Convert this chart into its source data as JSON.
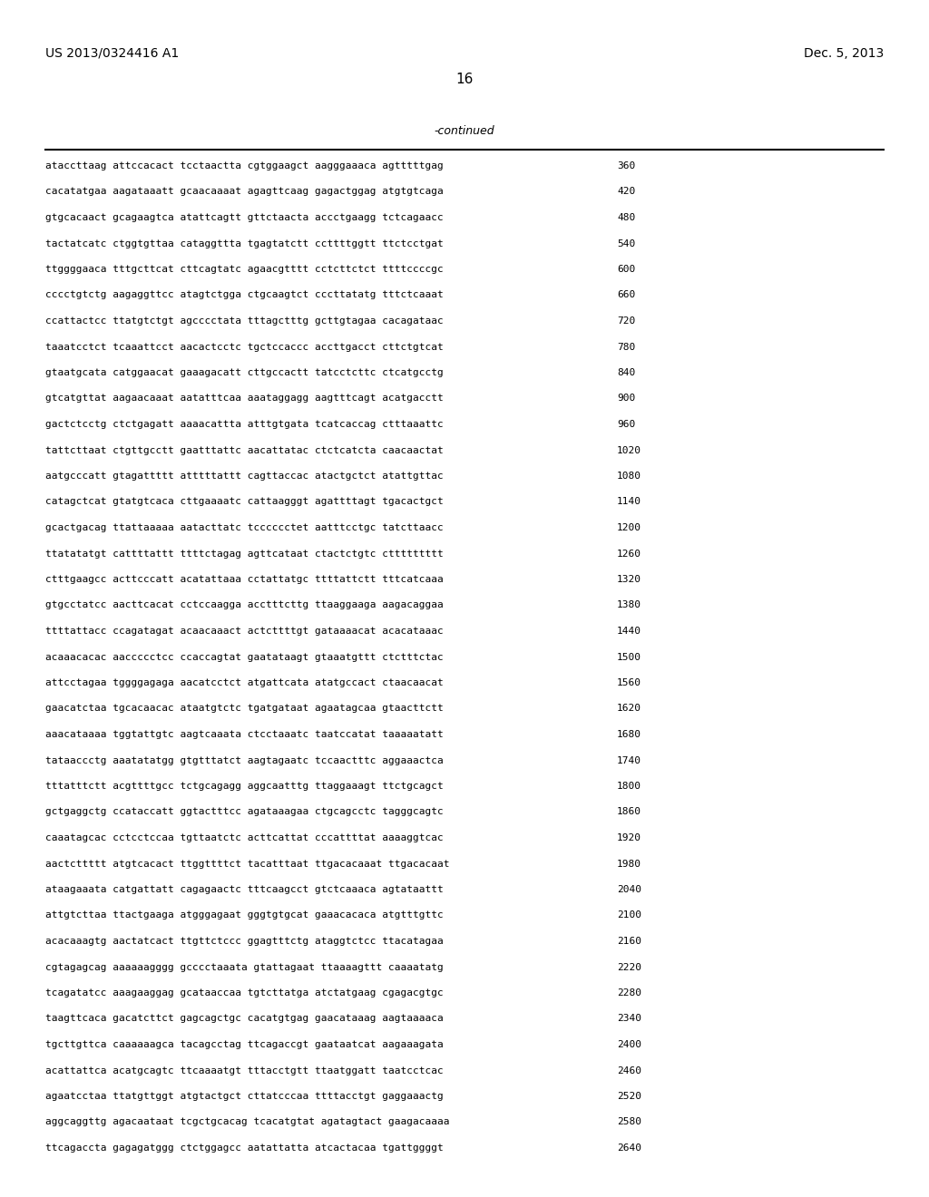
{
  "header_left": "US 2013/0324416 A1",
  "header_right": "Dec. 5, 2013",
  "page_number": "16",
  "continued_label": "-continued",
  "background_color": "#ffffff",
  "text_color": "#000000",
  "sequences": [
    [
      "ataccttaag attccacact tcctaactta cgtggaagct aagggaaaca agtttttgag",
      "360"
    ],
    [
      "cacatatgaa aagataaatt gcaacaaaat agagttcaag gagactggag atgtgtcaga",
      "420"
    ],
    [
      "gtgcacaact gcagaagtca atattcagtt gttctaacta accctgaagg tctcagaacc",
      "480"
    ],
    [
      "tactatcatc ctggtgttaa cataggttta tgagtatctt ccttttggtt ttctcctgat",
      "540"
    ],
    [
      "ttggggaaca tttgcttcat cttcagtatc agaacgtttt cctcttctct ttttccccgc",
      "600"
    ],
    [
      "cccctgtctg aagaggttcc atagtctgga ctgcaagtct cccttatatg tttctcaaat",
      "660"
    ],
    [
      "ccattactcc ttatgtctgt agcccctata tttagctttg gcttgtagaa cacagataac",
      "720"
    ],
    [
      "taaatcctct tcaaattcct aacactcctc tgctccaccc accttgacct cttctgtcat",
      "780"
    ],
    [
      "gtaatgcata catggaacat gaaagacatt cttgccactt tatcctcttc ctcatgcctg",
      "840"
    ],
    [
      "gtcatgttat aagaacaaat aatatttcaa aaataggagg aagtttcagt acatgacctt",
      "900"
    ],
    [
      "gactctcctg ctctgagatt aaaacattta atttgtgata tcatcaccag ctttaaattc",
      "960"
    ],
    [
      "tattcttaat ctgttgcctt gaatttattc aacattatac ctctcatcta caacaactat",
      "1020"
    ],
    [
      "aatgcccatt gtagattttt atttttattt cagttaccac atactgctct atattgttac",
      "1080"
    ],
    [
      "catagctcat gtatgtcaca cttgaaaatc cattaagggt agattttagt tgacactgct",
      "1140"
    ],
    [
      "gcactgacag ttattaaaaa aatacttatc tcccccctet aatttcctgc tatcttaacc",
      "1200"
    ],
    [
      "ttatatatgt cattttattt ttttctagag agttcataat ctactctgtc cttttttttt",
      "1260"
    ],
    [
      "ctttgaagcc acttcccatt acatattaaa cctattatgc ttttattctt tttcatcaaa",
      "1320"
    ],
    [
      "gtgcctatcc aacttcacat cctccaagga acctttcttg ttaaggaaga aagacaggaa",
      "1380"
    ],
    [
      "ttttattacc ccagatagat acaacaaact actcttttgt gataaaacat acacataaac",
      "1440"
    ],
    [
      "acaaacacac aaccccctcc ccaccagtat gaatataagt gtaaatgttt ctctttctac",
      "1500"
    ],
    [
      "attcctagaa tggggagaga aacatcctct atgattcata atatgccact ctaacaacat",
      "1560"
    ],
    [
      "gaacatctaa tgcacaacac ataatgtctc tgatgataat agaatagcaa gtaacttctt",
      "1620"
    ],
    [
      "aaacataaaa tggtattgtc aagtcaaata ctcctaaatc taatccatat taaaaatatt",
      "1680"
    ],
    [
      "tataaccctg aaatatatgg gtgtttatct aagtagaatc tccaactttc aggaaactca",
      "1740"
    ],
    [
      "tttatttctt acgttttgcc tctgcagagg aggcaatttg ttaggaaagt ttctgcagct",
      "1800"
    ],
    [
      "gctgaggctg ccataccatt ggtactttcc agataaagaa ctgcagcctc tagggcagtc",
      "1860"
    ],
    [
      "caaatagcac cctcctccaa tgttaatctc acttcattat cccattttat aaaaggtcac",
      "1920"
    ],
    [
      "aactcttttt atgtcacact ttggttttct tacatttaat ttgacacaaat ttgacacaat",
      "1980"
    ],
    [
      "ataagaaata catgattatt cagagaactc tttcaagcct gtctcaaaca agtataattt",
      "2040"
    ],
    [
      "attgtcttaa ttactgaaga atgggagaat gggtgtgcat gaaacacaca atgtttgttc",
      "2100"
    ],
    [
      "acacaaagtg aactatcact ttgttctccc ggagtttctg ataggtctcc ttacatagaa",
      "2160"
    ],
    [
      "cgtagagcag aaaaaagggg gcccctaaata gtattagaat ttaaaagttt caaaatatg",
      "2220"
    ],
    [
      "tcagatatcc aaagaaggag gcataaccaa tgtcttatga atctatgaag cgagacgtgc",
      "2280"
    ],
    [
      "taagttcaca gacatcttct gagcagctgc cacatgtgag gaacataaag aagtaaaaca",
      "2340"
    ],
    [
      "tgcttgttca caaaaaagca tacagcctag ttcagaccgt gaataatcat aagaaagata",
      "2400"
    ],
    [
      "acattattca acatgcagtc ttcaaaatgt tttacctgtt ttaatggatt taatcctcac",
      "2460"
    ],
    [
      "agaatcctaa ttatgttggt atgtactgct cttatcccaa ttttacctgt gaggaaactg",
      "2520"
    ],
    [
      "aggcaggttg agacaataat tcgctgcacag tcacatgtat agatagtact gaagacaaaa",
      "2580"
    ],
    [
      "ttcagaccta gagagatggg ctctggagcc aatattatta atcactacaa tgattggggt",
      "2640"
    ]
  ]
}
